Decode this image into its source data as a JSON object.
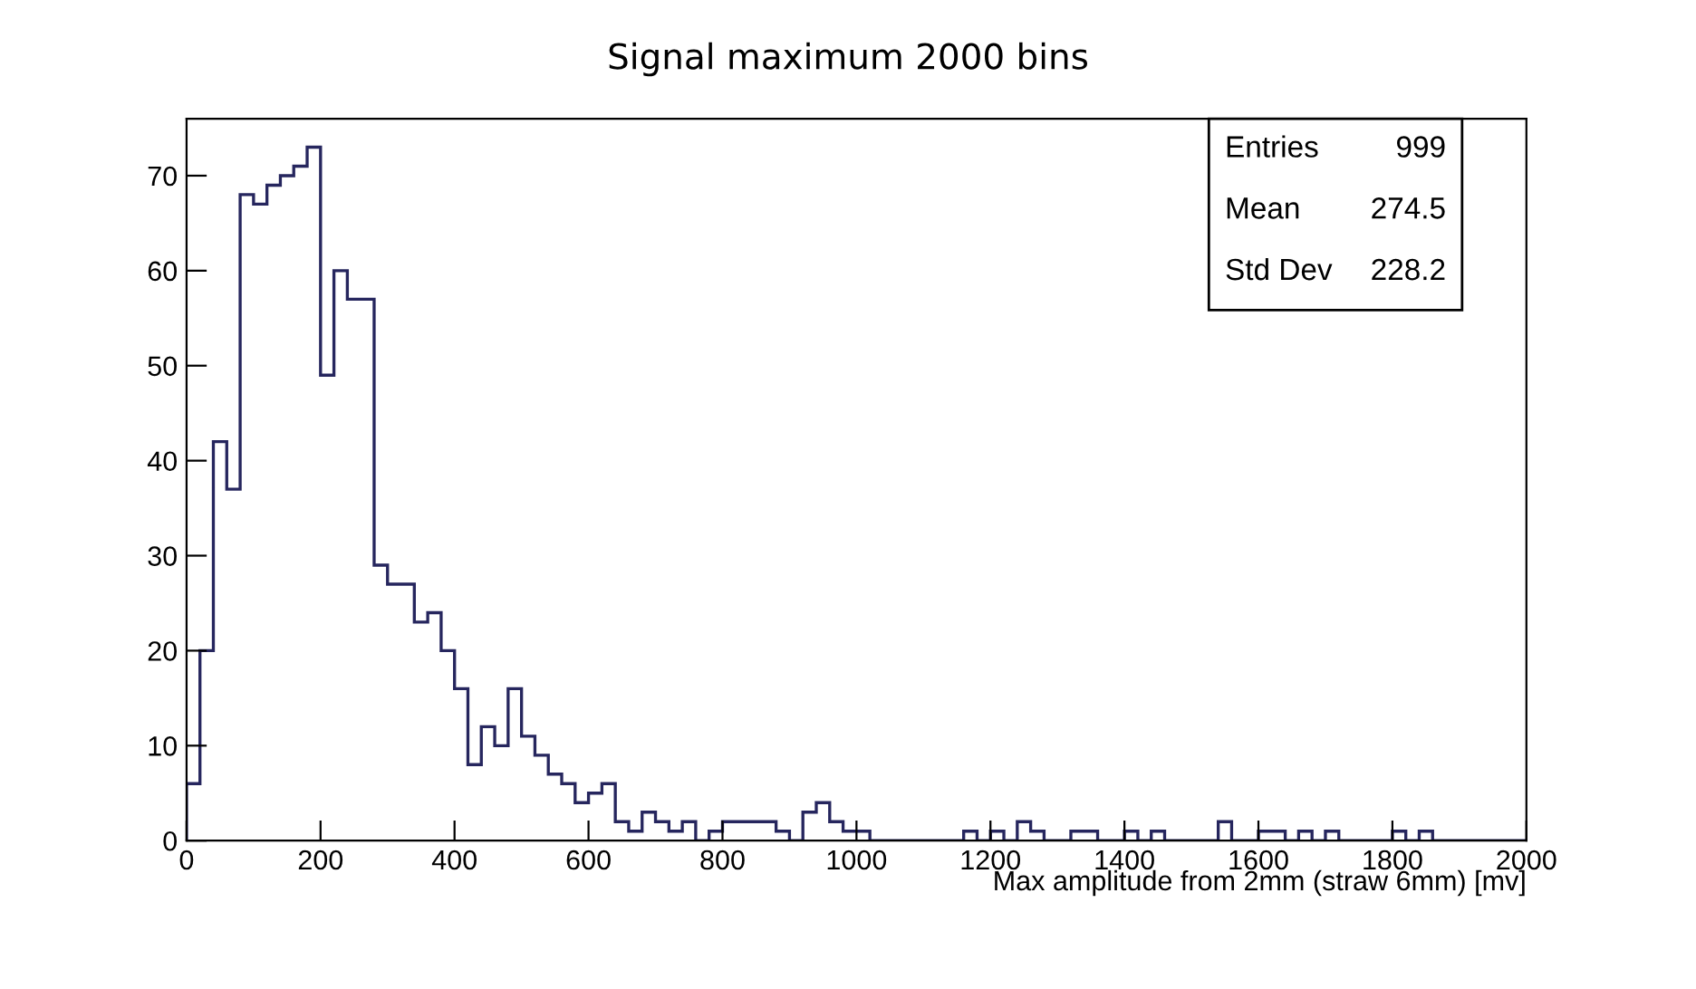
{
  "chart_data": {
    "type": "histogram",
    "title": "Signal maximum 2000 bins",
    "xlabel": "Max amplitude from 2mm (straw 6mm) [mv]",
    "bins": [
      0,
      20,
      40,
      60,
      80,
      100,
      120,
      140,
      160,
      180,
      200,
      220,
      240,
      260,
      280,
      300,
      320,
      340,
      360,
      380,
      400,
      420,
      440,
      460,
      480,
      500,
      520,
      540,
      560,
      580,
      600,
      620,
      640,
      660,
      680,
      700,
      720,
      740,
      760,
      780,
      800,
      820,
      840,
      860,
      880,
      900,
      920,
      940,
      960,
      980,
      1000,
      1020,
      1040,
      1060,
      1080,
      1100,
      1120,
      1140,
      1160,
      1180,
      1200,
      1220,
      1240,
      1260,
      1280,
      1300,
      1320,
      1340,
      1360,
      1380,
      1400,
      1420,
      1440,
      1460,
      1480,
      1500,
      1520,
      1540,
      1560,
      1580,
      1600,
      1620,
      1640,
      1660,
      1680,
      1700,
      1720,
      1740,
      1760,
      1780,
      1800,
      1820,
      1840,
      1860,
      1880,
      1900,
      1920,
      1940,
      1960,
      1980,
      2000
    ],
    "values": [
      6,
      20,
      42,
      37,
      68,
      67,
      69,
      70,
      71,
      73,
      49,
      60,
      57,
      57,
      29,
      27,
      27,
      23,
      24,
      20,
      16,
      8,
      12,
      10,
      16,
      11,
      9,
      7,
      6,
      4,
      5,
      6,
      2,
      1,
      3,
      2,
      1,
      2,
      0,
      1,
      2,
      2,
      2,
      2,
      1,
      0,
      3,
      4,
      2,
      1,
      1,
      0,
      0,
      0,
      0,
      0,
      0,
      0,
      1,
      0,
      1,
      0,
      2,
      1,
      0,
      0,
      1,
      1,
      0,
      0,
      1,
      0,
      1,
      0,
      0,
      0,
      0,
      2,
      0,
      0,
      1,
      1,
      0,
      1,
      0,
      1,
      0,
      0,
      0,
      0,
      1,
      0,
      1,
      0,
      0,
      0,
      0,
      0,
      0,
      0
    ],
    "color": "#26265e",
    "xlim": [
      0,
      2000
    ],
    "xticks": [
      0,
      200,
      400,
      600,
      800,
      1000,
      1200,
      1400,
      1600,
      1800,
      2000
    ],
    "ylim": [
      0,
      76
    ],
    "yticks": [
      0,
      10,
      20,
      30,
      40,
      50,
      60,
      70
    ],
    "grid": false,
    "legend": false,
    "annotations": [
      "Entries",
      "999",
      "Mean",
      "274.5",
      "Std Dev",
      "228.2"
    ]
  }
}
